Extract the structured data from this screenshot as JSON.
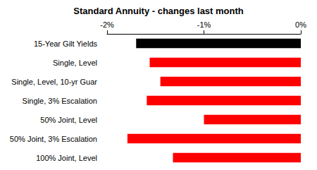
{
  "chart_data": {
    "type": "bar",
    "title": "Standard Annuity - changes last month",
    "orientation": "horizontal",
    "categories": [
      "15-Year Gilt Yields",
      "Single, Level",
      "Single, Level, 10-yr Guar",
      "Single, 3% Escalation",
      "50% Joint, Level",
      "50% Joint, 3% Escalation",
      "100% Joint, Level"
    ],
    "values": [
      -1.7,
      -1.56,
      -1.45,
      -1.59,
      -1.0,
      -1.79,
      -1.32
    ],
    "colors": [
      "#000000",
      "#ff0000",
      "#ff0000",
      "#ff0000",
      "#ff0000",
      "#ff0000",
      "#ff0000"
    ],
    "xlim": [
      -2,
      0
    ],
    "xticks": [
      {
        "value": -2,
        "label": "-2%"
      },
      {
        "value": -1,
        "label": "-1%"
      },
      {
        "value": 0,
        "label": "0%"
      }
    ],
    "grid": false
  }
}
